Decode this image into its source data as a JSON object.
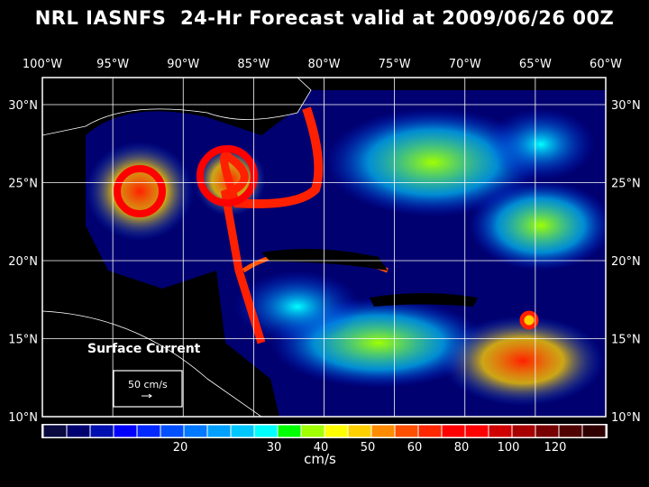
{
  "title": "NRL IASNFS  24-Hr Forecast valid at 2009/06/26 00Z",
  "map": {
    "lon_ticks": [
      "100°W",
      "95°W",
      "90°W",
      "85°W",
      "80°W",
      "75°W",
      "70°W",
      "65°W",
      "60°W"
    ],
    "lon_values": [
      -100,
      -95,
      -90,
      -85,
      -80,
      -75,
      -70,
      -65,
      -60
    ],
    "lat_ticks": [
      "10°N",
      "15°N",
      "20°N",
      "25°N",
      "30°N"
    ],
    "lat_values": [
      10,
      15,
      20,
      25,
      30
    ],
    "field_label": "Surface Current",
    "reference_vector_label": "50 cm/s"
  },
  "colorbar": {
    "colors": [
      "#0a0a40",
      "#000070",
      "#0010b0",
      "#0000ff",
      "#0028ff",
      "#0050ff",
      "#0078ff",
      "#00a0ff",
      "#00c8ff",
      "#00ffff",
      "#00ff00",
      "#a0ff00",
      "#ffff00",
      "#ffd000",
      "#ff8c00",
      "#ff5000",
      "#ff2800",
      "#ff0000",
      "#ff0000",
      "#d00000",
      "#a80000",
      "#780000",
      "#500000",
      "#300000"
    ],
    "tick_labels": [
      "20",
      "30",
      "40",
      "50",
      "60",
      "80",
      "100",
      "120"
    ],
    "tick_boundary_index": [
      6,
      10,
      12,
      14,
      16,
      18,
      20,
      22
    ],
    "units": "cm/s"
  }
}
